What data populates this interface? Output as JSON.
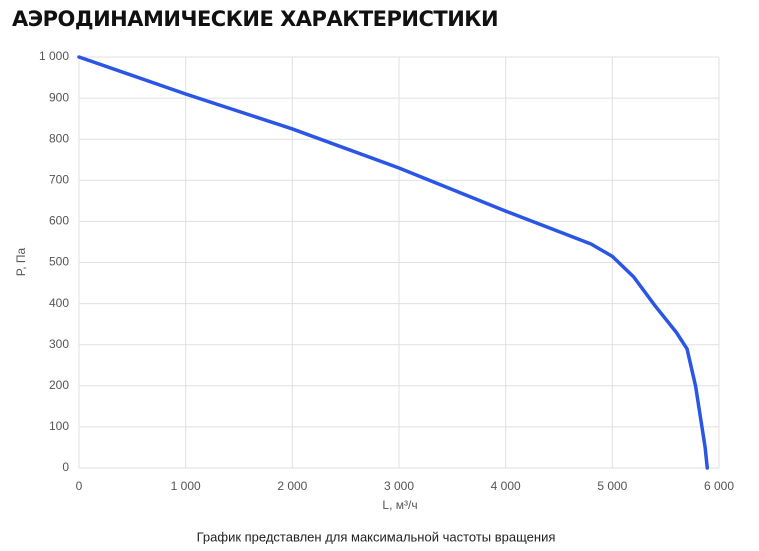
{
  "chart_data": {
    "type": "line",
    "title": "АЭРОДИНАМИЧЕСКИЕ ХАРАКТЕРИСТИКИ",
    "x_label": "L, м³/ч",
    "y_label": "P, Па",
    "note": "График представлен для максимальной частоты вращения",
    "x": [
      0,
      1000,
      2000,
      3000,
      4000,
      4500,
      4800,
      5000,
      5200,
      5400,
      5600,
      5700,
      5780,
      5840,
      5870,
      5890
    ],
    "series": [
      {
        "name": "P",
        "color": "#2a55e5",
        "values": [
          1000,
          910,
          825,
          730,
          625,
          575,
          545,
          515,
          465,
          395,
          330,
          290,
          200,
          100,
          50,
          0
        ]
      }
    ],
    "xlim": [
      0,
      6000
    ],
    "xticks": [
      0,
      {
        "value": 1000,
        "label": "1 000"
      },
      {
        "value": 2000,
        "label": "2 000"
      },
      {
        "value": 3000,
        "label": "3 000"
      },
      {
        "value": 4000,
        "label": "4 000"
      },
      {
        "value": 5000,
        "label": "5 000"
      },
      {
        "value": 6000,
        "label": "6 000"
      }
    ],
    "ylim": [
      0,
      1000
    ],
    "yticks": [
      0,
      100,
      200,
      300,
      400,
      500,
      600,
      700,
      800,
      900,
      {
        "value": 1000,
        "label": "1 000"
      }
    ],
    "grid": true
  }
}
